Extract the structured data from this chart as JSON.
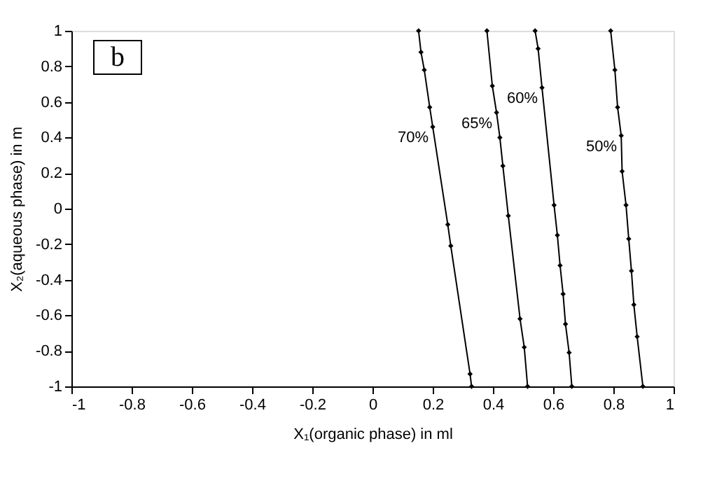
{
  "chart_data": {
    "type": "line",
    "xlabel": "X₁(organic phase) in ml",
    "ylabel": "X₂(aqueous phase) in m",
    "annotations": [
      "b"
    ],
    "xlim": [
      -1,
      1
    ],
    "xticks": [
      -1,
      -0.8,
      -0.6,
      -0.4,
      -0.2,
      0,
      0.2,
      0.4,
      0.6,
      0.8,
      1
    ],
    "ylim": [
      -1,
      1
    ],
    "yticks": [
      -1,
      -0.8,
      -0.6,
      -0.4,
      -0.2,
      0,
      0.2,
      0.4,
      0.6,
      0.8,
      1
    ],
    "grid": false,
    "marker": "diamond",
    "line_style": "solid",
    "legend": false,
    "series": [
      {
        "name": "70%",
        "color": "#000000",
        "x": [
          0.153,
          0.161,
          0.172,
          0.19,
          0.2,
          0.25,
          0.26,
          0.324,
          0.329
        ],
        "values": [
          1,
          0.88,
          0.78,
          0.57,
          0.46,
          -0.09,
          -0.21,
          -0.93,
          -1
        ]
      },
      {
        "name": "65%",
        "color": "#000000",
        "x": [
          0.38,
          0.398,
          0.412,
          0.423,
          0.433,
          0.451,
          0.49,
          0.504,
          0.515
        ],
        "values": [
          1,
          0.69,
          0.54,
          0.4,
          0.24,
          -0.04,
          -0.62,
          -0.78,
          -1
        ]
      },
      {
        "name": "60%",
        "color": "#000000",
        "x": [
          0.54,
          0.55,
          0.563,
          0.603,
          0.614,
          0.623,
          0.633,
          0.641,
          0.653,
          0.662
        ],
        "values": [
          1,
          0.9,
          0.68,
          0.02,
          -0.15,
          -0.32,
          -0.48,
          -0.65,
          -0.81,
          -1
        ]
      },
      {
        "name": "50%",
        "color": "#000000",
        "x": [
          0.791,
          0.805,
          0.814,
          0.826,
          0.829,
          0.842,
          0.851,
          0.86,
          0.868,
          0.879,
          0.898
        ],
        "values": [
          1,
          0.78,
          0.57,
          0.41,
          0.21,
          0.02,
          -0.17,
          -0.35,
          -0.54,
          -0.72,
          -1
        ]
      }
    ]
  }
}
